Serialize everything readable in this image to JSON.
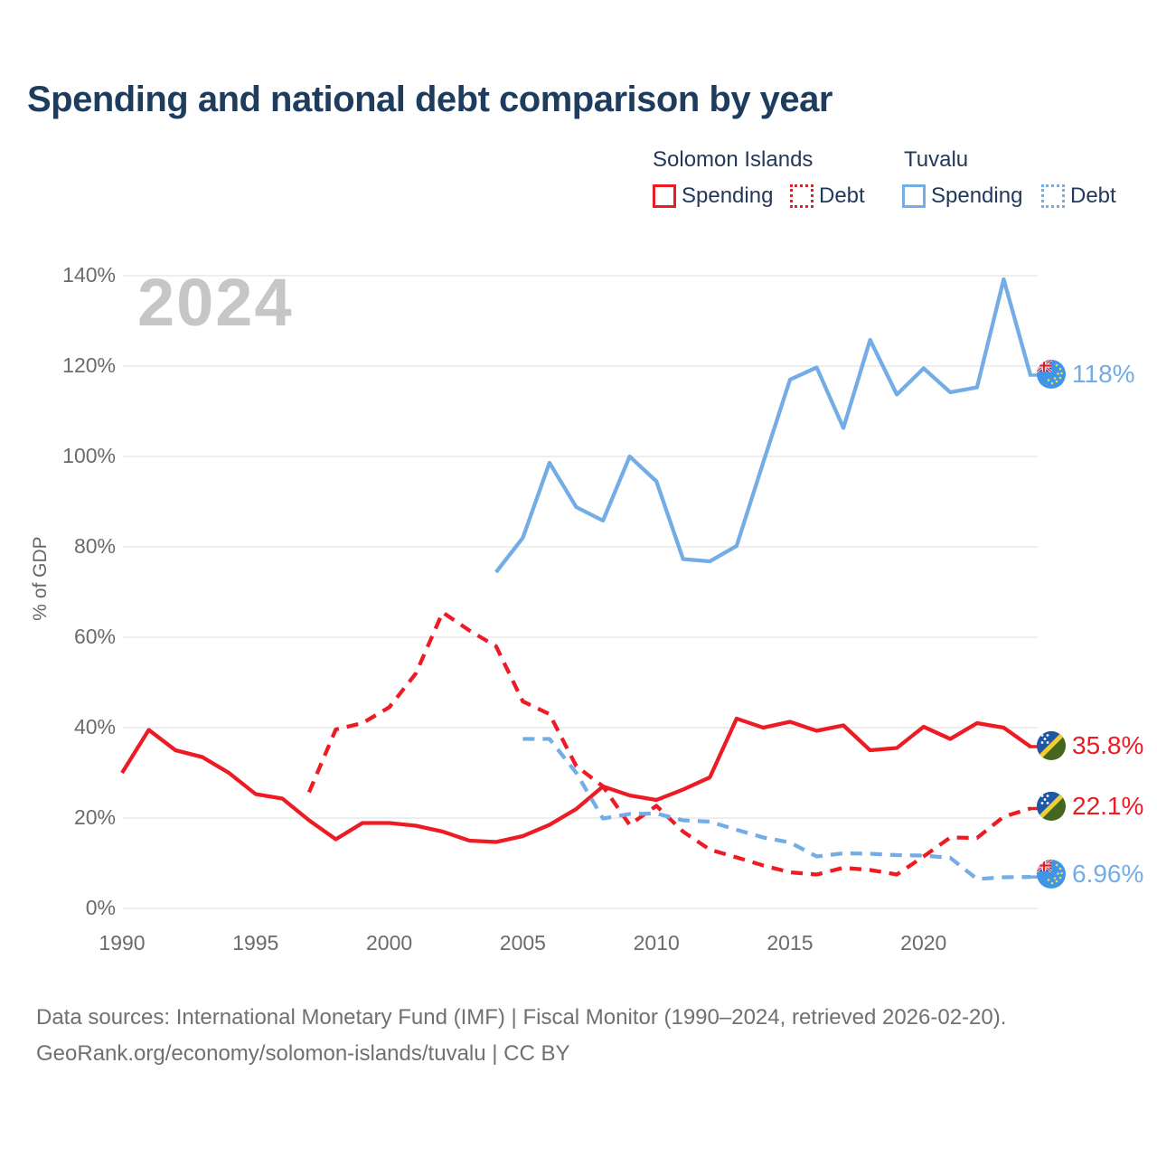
{
  "title": "Spending and national debt comparison by year",
  "watermark": "2024",
  "colors": {
    "solomon_islands": "#ed1c24",
    "tuvalu": "#74ace6",
    "title_text": "#1d3c5e",
    "grid": "#e9e9e9",
    "tick_text": "#6b6b6b",
    "watermark": "#c6c6c6"
  },
  "legend": {
    "groups": [
      {
        "label": "Solomon Islands",
        "items": [
          {
            "label": "Spending",
            "style": "solid",
            "color": "#ed1c24"
          },
          {
            "label": "Debt",
            "style": "dotted",
            "color": "#ed1c24"
          }
        ]
      },
      {
        "label": "Tuvalu",
        "items": [
          {
            "label": "Spending",
            "style": "solid",
            "color": "#74ace6"
          },
          {
            "label": "Debt",
            "style": "dotted",
            "color": "#74ace6"
          }
        ]
      }
    ]
  },
  "y_axis": {
    "label": "% of GDP",
    "tick_values": [
      0,
      20,
      40,
      60,
      80,
      100,
      120,
      140
    ],
    "ticks": [
      "0%",
      "20%",
      "40%",
      "60%",
      "80%",
      "100%",
      "120%",
      "140%"
    ]
  },
  "x_axis": {
    "tick_values": [
      1990,
      1995,
      2000,
      2005,
      2010,
      2015,
      2020
    ],
    "ticks": [
      "1990",
      "1995",
      "2000",
      "2005",
      "2010",
      "2015",
      "2020"
    ]
  },
  "chart_data": {
    "type": "line",
    "title": "Spending and national debt comparison by year",
    "xlabel": "",
    "ylabel": "% of GDP",
    "xlim": [
      1990,
      2024
    ],
    "ylim": [
      0,
      145
    ],
    "grid": "horizontal",
    "legend_position": "top-right",
    "x": [
      1990,
      1991,
      1992,
      1993,
      1994,
      1995,
      1996,
      1997,
      1998,
      1999,
      2000,
      2001,
      2002,
      2003,
      2004,
      2005,
      2006,
      2007,
      2008,
      2009,
      2010,
      2011,
      2012,
      2013,
      2014,
      2015,
      2016,
      2017,
      2018,
      2019,
      2020,
      2021,
      2022,
      2023,
      2024
    ],
    "series": [
      {
        "name": "Solomon Islands Spending",
        "country": "Solomon Islands",
        "metric": "Spending",
        "color": "#ed1c24",
        "dash": "solid",
        "values": [
          30,
          39.5,
          35,
          33.5,
          30,
          25.3,
          24.3,
          19.5,
          15.3,
          18.9,
          18.9,
          18.3,
          17,
          15,
          14.7,
          16,
          18.5,
          22,
          27,
          25,
          24,
          26.3,
          29,
          42,
          40,
          41.3,
          39.3,
          40.5,
          35,
          35.5,
          40.2,
          37.5,
          41,
          40,
          35.8
        ]
      },
      {
        "name": "Solomon Islands Debt",
        "country": "Solomon Islands",
        "metric": "Debt",
        "color": "#ed1c24",
        "dash": "dashed",
        "values": [
          null,
          null,
          null,
          null,
          null,
          null,
          null,
          25.7,
          39.6,
          41,
          44.5,
          52,
          65.5,
          61.5,
          58,
          45.8,
          43,
          31.5,
          27,
          18.5,
          22.7,
          17,
          13,
          11.3,
          9.5,
          8,
          7.5,
          9,
          8.5,
          7.5,
          11.5,
          15.7,
          15.6,
          20.3,
          22.1
        ]
      },
      {
        "name": "Tuvalu Spending",
        "country": "Tuvalu",
        "metric": "Spending",
        "color": "#74ace6",
        "dash": "solid",
        "values": [
          null,
          null,
          null,
          null,
          null,
          null,
          null,
          null,
          null,
          null,
          null,
          null,
          null,
          null,
          74.4,
          82,
          98.6,
          88.8,
          85.8,
          100,
          94.5,
          77.3,
          76.8,
          80.2,
          98.7,
          117,
          119.7,
          106.3,
          125.8,
          113.7,
          119.5,
          114.2,
          115.3,
          139.2,
          118
        ]
      },
      {
        "name": "Tuvalu Debt",
        "country": "Tuvalu",
        "metric": "Debt",
        "color": "#74ace6",
        "dash": "dashed",
        "values": [
          null,
          null,
          null,
          null,
          null,
          null,
          null,
          null,
          null,
          null,
          null,
          null,
          null,
          null,
          null,
          37.5,
          37.5,
          30,
          19.9,
          20.9,
          21,
          19.5,
          19.2,
          17.4,
          15.7,
          14.6,
          11.5,
          12.2,
          12.1,
          11.8,
          11.7,
          11.2,
          6.5,
          6.9,
          6.96
        ]
      }
    ]
  },
  "end_labels": [
    {
      "text": "118%",
      "value": 118,
      "color": "#74ace6",
      "flag": "tuvalu-flag-icon"
    },
    {
      "text": "35.8%",
      "value": 35.8,
      "color": "#ed1c24",
      "flag": "solomon-islands-flag-icon"
    },
    {
      "text": "22.1%",
      "value": 22.1,
      "color": "#ed1c24",
      "flag": "solomon-islands-flag-icon"
    },
    {
      "text": "6.96%",
      "value": 6.96,
      "color": "#74ace6",
      "flag": "tuvalu-flag-icon"
    }
  ],
  "footer": {
    "line1": "Data sources: International Monetary Fund (IMF) | Fiscal Monitor (1990–2024, retrieved 2026-02-20).",
    "line2": "GeoRank.org/economy/solomon-islands/tuvalu | CC BY"
  }
}
